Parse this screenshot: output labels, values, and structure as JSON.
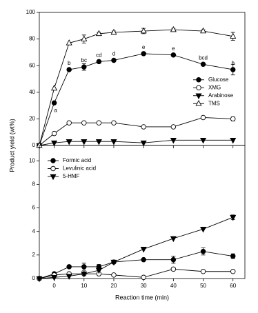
{
  "chart_data": [
    {
      "type": "line",
      "y_label": "Product yield (wt%)",
      "x": [
        -5,
        0,
        5,
        10,
        15,
        20,
        30,
        40,
        50,
        60
      ],
      "xlim": [
        -5,
        64
      ],
      "xticks": [
        0,
        10,
        20,
        30,
        40,
        50,
        60
      ],
      "ylim": [
        0,
        100
      ],
      "yticks": [
        0,
        20,
        40,
        60,
        80,
        100
      ],
      "legend": "lower right",
      "series": [
        {
          "name": "Glucose",
          "color": "#000000",
          "marker": "filled-circle",
          "values": [
            0,
            32,
            57,
            59,
            63,
            64,
            69,
            68,
            61,
            57
          ],
          "errors": [
            0,
            0,
            0,
            2.5,
            1,
            1,
            1,
            1,
            1,
            4
          ],
          "letters": [
            null,
            "a",
            "b",
            "bc",
            "cd",
            "d",
            "e",
            "e",
            "bcd",
            "b"
          ]
        },
        {
          "name": "XMG",
          "color": "#000000",
          "marker": "open-circle",
          "values": [
            0,
            9,
            17,
            17,
            17,
            17,
            14,
            14,
            21,
            20
          ],
          "errors": [
            0,
            0,
            0,
            0,
            0,
            0,
            0,
            0,
            0,
            1.5
          ]
        },
        {
          "name": "Arabinose",
          "color": "#000000",
          "marker": "filled-triangle-down",
          "values": [
            0,
            2,
            3,
            3,
            3,
            3,
            2,
            4,
            4,
            4
          ],
          "errors": [
            0,
            0,
            0,
            0,
            0,
            0,
            0,
            0,
            0,
            0
          ]
        },
        {
          "name": "TMS",
          "color": "#000000",
          "marker": "open-triangle-up",
          "values": [
            0,
            43,
            77,
            80,
            84,
            85,
            86,
            87,
            86,
            82
          ],
          "errors": [
            0,
            0,
            0,
            3,
            1,
            1,
            2,
            1,
            1,
            3
          ]
        }
      ]
    },
    {
      "type": "line",
      "x_label": "Reaction time (min)",
      "x": [
        -5,
        0,
        5,
        10,
        15,
        20,
        30,
        40,
        50,
        60
      ],
      "xlim": [
        -5,
        64
      ],
      "xticks": [
        0,
        10,
        20,
        30,
        40,
        50,
        60
      ],
      "ylim": [
        0,
        11.3
      ],
      "yticks": [
        0,
        2,
        4,
        6,
        8,
        10
      ],
      "legend": "upper left",
      "series": [
        {
          "name": "Formic acid",
          "color": "#000000",
          "marker": "filled-circle",
          "values": [
            0,
            0.4,
            1.0,
            1.0,
            1.0,
            1.4,
            1.6,
            1.6,
            2.3,
            1.9
          ],
          "errors": [
            0,
            0.1,
            0.1,
            0.3,
            0.2,
            0.1,
            0.1,
            0.3,
            0.3,
            0.2
          ]
        },
        {
          "name": "Levulinic acid",
          "color": "#000000",
          "marker": "open-circle",
          "values": [
            0,
            0.3,
            0.4,
            0.4,
            0.4,
            0.3,
            0.1,
            0.8,
            0.6,
            0.6
          ],
          "errors": [
            0,
            0,
            0,
            0,
            0,
            0,
            0,
            0.1,
            0,
            0
          ]
        },
        {
          "name": "5-HMF",
          "color": "#000000",
          "marker": "filled-triangle-down",
          "values": [
            0,
            0.1,
            0.2,
            0.4,
            0.7,
            1.4,
            2.5,
            3.4,
            4.2,
            5.2
          ],
          "errors": [
            0,
            0,
            0,
            0,
            0,
            0,
            0,
            0,
            0,
            0.2
          ]
        }
      ]
    }
  ]
}
